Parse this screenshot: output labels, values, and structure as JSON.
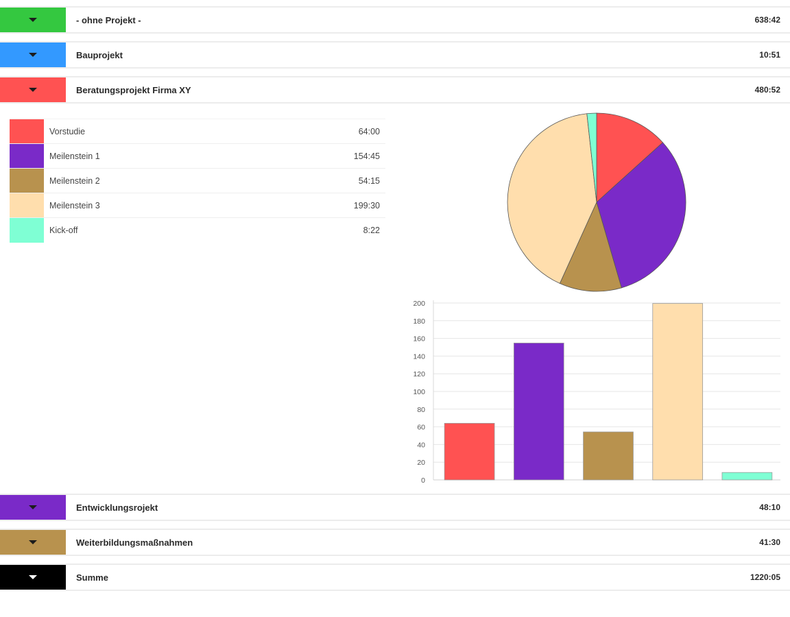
{
  "projects": [
    {
      "name": "- ohne Projekt -",
      "total": "638:42",
      "color": "#34c840"
    },
    {
      "name": "Bauprojekt",
      "total": "10:51",
      "color": "#3399ff"
    },
    {
      "name": "Beratungsprojekt Firma XY",
      "total": "480:52",
      "color": "#ff5252"
    },
    {
      "name": "Entwicklungsrojekt",
      "total": "48:10",
      "color": "#7a2ac8"
    },
    {
      "name": "Weiterbildungsmaßnahmen",
      "total": "41:30",
      "color": "#b8924e"
    },
    {
      "name": "Summe",
      "total": "1220:05",
      "color": "#000000"
    }
  ],
  "expanded": {
    "milestones": [
      {
        "name": "Vorstudie",
        "time": "64:00",
        "color": "#ff5252"
      },
      {
        "name": "Meilenstein 1",
        "time": "154:45",
        "color": "#7a2ac8"
      },
      {
        "name": "Meilenstein 2",
        "time": "54:15",
        "color": "#b8924e"
      },
      {
        "name": "Meilenstein 3",
        "time": "199:30",
        "color": "#ffdead"
      },
      {
        "name": "Kick-off",
        "time": "8:22",
        "color": "#7fffd4"
      }
    ]
  },
  "chart_data": [
    {
      "type": "pie",
      "labels": [
        "Vorstudie",
        "Meilenstein 1",
        "Meilenstein 2",
        "Meilenstein 3",
        "Kick-off"
      ],
      "values": [
        64.0,
        154.75,
        54.25,
        199.5,
        8.37
      ],
      "colors": [
        "#ff5252",
        "#7a2ac8",
        "#b8924e",
        "#ffdead",
        "#7fffd4"
      ]
    },
    {
      "type": "bar",
      "categories": [
        "Vorstudie",
        "Meilenstein 1",
        "Meilenstein 2",
        "Meilenstein 3",
        "Kick-off"
      ],
      "values": [
        64.0,
        154.75,
        54.25,
        199.5,
        8.37
      ],
      "colors": [
        "#ff5252",
        "#7a2ac8",
        "#b8924e",
        "#ffdead",
        "#7fffd4"
      ],
      "ylim": [
        0,
        200
      ],
      "yticks": [
        "0",
        "20",
        "40",
        "60",
        "80",
        "100",
        "120",
        "140",
        "160",
        "180",
        "200"
      ],
      "grid": true
    }
  ]
}
